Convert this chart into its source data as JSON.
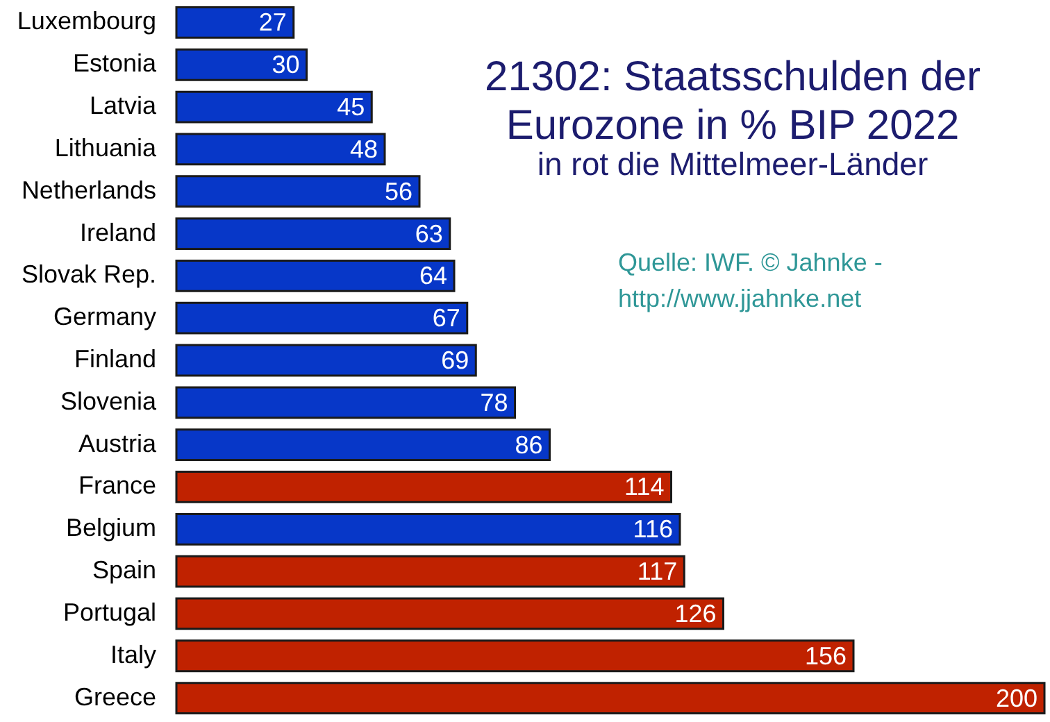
{
  "chart_data": {
    "type": "bar",
    "orientation": "horizontal",
    "title": "21302: Staatsschulden der Eurozone in % BIP 2022",
    "subtitle": "in rot die Mittelmeer-Länder",
    "annotations": [
      "Quelle: IWF. © Jahnke - http://www.jjahnke.net"
    ],
    "categories": [
      "Luxembourg",
      "Estonia",
      "Latvia",
      "Lithuania",
      "Netherlands",
      "Ireland",
      "Slovak Rep.",
      "Germany",
      "Finland",
      "Slovenia",
      "Austria",
      "France",
      "Belgium",
      "Spain",
      "Portugal",
      "Italy",
      "Greece"
    ],
    "values": [
      27,
      30,
      45,
      48,
      56,
      63,
      64,
      67,
      69,
      78,
      86,
      114,
      116,
      117,
      126,
      156,
      200
    ],
    "colors": [
      "#0737c8",
      "#0737c8",
      "#0737c8",
      "#0737c8",
      "#0737c8",
      "#0737c8",
      "#0737c8",
      "#0737c8",
      "#0737c8",
      "#0737c8",
      "#0737c8",
      "#c02200",
      "#0737c8",
      "#c02200",
      "#c02200",
      "#c02200",
      "#c02200"
    ],
    "data_labels": true,
    "grid": false
  }
}
